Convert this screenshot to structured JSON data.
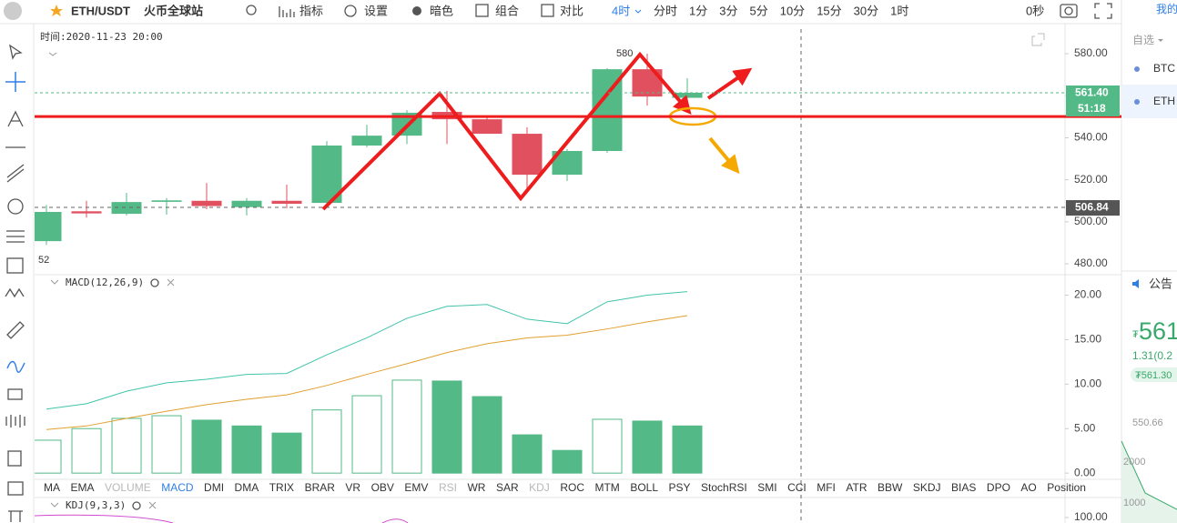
{
  "toolbar": {
    "symbol": "ETH/USDT",
    "exchange": "火币全球站",
    "menu": [
      "指标",
      "设置",
      "暗色",
      "组合",
      "对比"
    ],
    "active_interval": "4时",
    "intervals": [
      "分时",
      "1分",
      "3分",
      "5分",
      "10分",
      "15分",
      "30分",
      "1时"
    ],
    "refresh": "0秒"
  },
  "sidebar": {
    "tab": "我的",
    "watchlist": "自选",
    "symbols": [
      "BTC",
      "ETH"
    ],
    "notice": "公告",
    "price_currency": "₮",
    "price": "561",
    "change": "1.31(0.2",
    "price_pill": "₮561.30",
    "mini_ticks": [
      "550.66",
      "2000",
      "1000"
    ]
  },
  "indicator_tabs": [
    {
      "label": "MA",
      "color": "#333333"
    },
    {
      "label": "EMA",
      "color": "#333333"
    },
    {
      "label": "VOLUME",
      "color": "#b8b8b8"
    },
    {
      "label": "MACD",
      "color": "#2f7fe6"
    },
    {
      "label": "DMI",
      "color": "#333333"
    },
    {
      "label": "DMA",
      "color": "#333333"
    },
    {
      "label": "TRIX",
      "color": "#333333"
    },
    {
      "label": "BRAR",
      "color": "#333333"
    },
    {
      "label": "VR",
      "color": "#333333"
    },
    {
      "label": "OBV",
      "color": "#333333"
    },
    {
      "label": "EMV",
      "color": "#333333"
    },
    {
      "label": "RSI",
      "color": "#b8b8b8"
    },
    {
      "label": "WR",
      "color": "#333333"
    },
    {
      "label": "SAR",
      "color": "#333333"
    },
    {
      "label": "KDJ",
      "color": "#b8b8b8"
    },
    {
      "label": "ROC",
      "color": "#333333"
    },
    {
      "label": "MTM",
      "color": "#333333"
    },
    {
      "label": "BOLL",
      "color": "#333333"
    },
    {
      "label": "PSY",
      "color": "#333333"
    },
    {
      "label": "StochRSI",
      "color": "#333333"
    },
    {
      "label": "SMI",
      "color": "#333333"
    },
    {
      "label": "CCI",
      "color": "#333333"
    },
    {
      "label": "MFI",
      "color": "#333333"
    },
    {
      "label": "ATR",
      "color": "#333333"
    },
    {
      "label": "BBW",
      "color": "#333333"
    },
    {
      "label": "SKDJ",
      "color": "#333333"
    },
    {
      "label": "BIAS",
      "color": "#333333"
    },
    {
      "label": "DPO",
      "color": "#333333"
    },
    {
      "label": "AO",
      "color": "#333333"
    },
    {
      "label": "Position",
      "color": "#333333"
    }
  ],
  "chart_data": [
    {
      "type": "candlestick",
      "time_label": "时间:2020-11-23 20:00",
      "up_color": "#53b987",
      "down_color": "#e0505f",
      "open": [
        490.8,
        505,
        503.8,
        509.5,
        510,
        507,
        510,
        509,
        536.3,
        541,
        552.3,
        548.8,
        541.9,
        522.4,
        533.7,
        572.6,
        559
      ],
      "high": [
        508,
        510,
        513.8,
        511.3,
        518.5,
        511.3,
        517.7,
        538.4,
        546.2,
        553.2,
        562.3,
        549.8,
        545,
        534.6,
        573.1,
        580,
        568.3
      ],
      "low": [
        489,
        502,
        503,
        503.4,
        506,
        503,
        506.4,
        508.4,
        535.5,
        537,
        537,
        541.9,
        514.6,
        519.4,
        532.8,
        555.3,
        557.4
      ],
      "close": [
        504.7,
        504,
        509.4,
        510.2,
        507.5,
        510,
        508.6,
        536.3,
        541,
        551.9,
        548.8,
        541.9,
        522.4,
        533.7,
        572.6,
        559.6,
        561.4
      ],
      "ylim": [
        475.7,
        591.7
      ],
      "yticks": [
        {
          "value": 480,
          "label": "480.00"
        },
        {
          "value": 500,
          "label": "500.00"
        },
        {
          "value": 520,
          "label": "520.00"
        },
        {
          "value": 540,
          "label": "540.00"
        },
        {
          "value": 560,
          "label": "560.00"
        },
        {
          "value": 580,
          "label": "580.00"
        }
      ],
      "last_price": {
        "value": 561.4,
        "label": "561.40",
        "color": "#53b987"
      },
      "countdown": "51:18",
      "crosshair_price": {
        "value": 506.84,
        "label": "506.84"
      },
      "hline": {
        "value": 550.1,
        "color": "#ee1c1c"
      },
      "annotations": [
        {
          "value": 580,
          "label": "580"
        },
        {
          "label": "52"
        }
      ]
    },
    {
      "type": "macd",
      "title": "MACD(12,26,9)",
      "up_color": "#53b987",
      "histogram": [
        3.7,
        5.0,
        6.15,
        6.45,
        5.95,
        5.3,
        4.5,
        7.1,
        8.7,
        10.45,
        10.35,
        8.6,
        4.3,
        2.55,
        6.05,
        5.85,
        5.3
      ],
      "hollow": [
        true,
        true,
        true,
        true,
        false,
        false,
        false,
        true,
        true,
        true,
        false,
        false,
        false,
        false,
        true,
        false,
        false
      ],
      "dif": [
        7.2,
        7.8,
        9.2,
        10.15,
        10.55,
        11.1,
        11.2,
        13.3,
        15.2,
        17.4,
        18.75,
        18.95,
        17.3,
        16.8,
        19.25,
        20.0,
        20.4
      ],
      "dif_color": "#40c4aa",
      "dea": [
        4.9,
        5.3,
        6.15,
        6.95,
        7.7,
        8.3,
        8.8,
        9.85,
        11.1,
        12.3,
        13.55,
        14.55,
        15.2,
        15.5,
        16.2,
        17.0,
        17.7
      ],
      "dea_color": "#e0a030",
      "ylim": [
        -0.7,
        22.2
      ],
      "yticks": [
        {
          "value": 0,
          "label": "0.00"
        },
        {
          "value": 5,
          "label": "5.00"
        },
        {
          "value": 10,
          "label": "10.00"
        },
        {
          "value": 15,
          "label": "15.00"
        },
        {
          "value": 20,
          "label": "20.00"
        }
      ]
    },
    {
      "type": "kdj",
      "title": "KDJ(9,3,3)",
      "ylim": [
        0,
        106
      ],
      "yticks": [
        {
          "value": 100,
          "label": "100.00"
        }
      ]
    }
  ]
}
